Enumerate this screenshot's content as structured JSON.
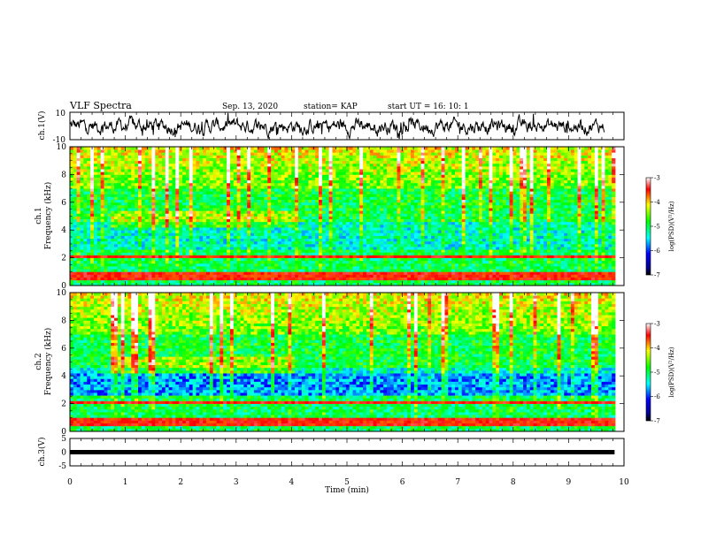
{
  "header": {
    "title": "VLF Spectra",
    "date": "Sep. 13, 2020",
    "station": "station= KAP",
    "start_ut": "start  UT =   16: 10: 1"
  },
  "chart_data": [
    {
      "type": "line",
      "panel": "ch1-waveform",
      "ylabel": "ch.1(V)",
      "ylim": [
        -10,
        10
      ],
      "yticks": [
        "10",
        "-10"
      ],
      "xlim": [
        0,
        10
      ]
    },
    {
      "type": "heatmap",
      "panel": "ch1-spectrogram",
      "ylabel_top": "ch.1",
      "ylabel": "Frequency (kHz)",
      "ylim": [
        0,
        10
      ],
      "yticks": [
        "0",
        "2",
        "4",
        "6",
        "8",
        "10"
      ],
      "xlim": [
        0,
        10
      ],
      "colorbar": {
        "label": "log(PSD)(V²/Hz)",
        "range": [
          -7,
          -3
        ],
        "ticks": [
          "-3",
          "-4",
          "-5",
          "-6",
          "-7"
        ]
      }
    },
    {
      "type": "heatmap",
      "panel": "ch2-spectrogram",
      "ylabel_top": "ch.2",
      "ylabel": "Frequency (kHz)",
      "ylim": [
        0,
        10
      ],
      "yticks": [
        "0",
        "2",
        "4",
        "6",
        "8",
        "10"
      ],
      "xlim": [
        0,
        10
      ],
      "colorbar": {
        "label": "log(PSD)(V²/Hz)",
        "range": [
          -7,
          -3
        ],
        "ticks": [
          "-3",
          "-4",
          "-5",
          "-6",
          "-7"
        ]
      }
    },
    {
      "type": "line",
      "panel": "ch3-waveform",
      "ylabel": "ch.3(V)",
      "ylim": [
        -5,
        5
      ],
      "yticks": [
        "5",
        "0",
        "-5"
      ],
      "x": [
        0,
        9.83
      ],
      "y": [
        0,
        0
      ],
      "xlabel": "Time (min)",
      "xlim": [
        0,
        10
      ],
      "xticks": [
        "0",
        "1",
        "2",
        "3",
        "4",
        "5",
        "6",
        "7",
        "8",
        "9",
        "10"
      ]
    }
  ],
  "colors": {
    "axis": "#000000",
    "waveform": "#000000",
    "colormap": [
      "#000080",
      "#0000ff",
      "#00ffff",
      "#00ff00",
      "#ffff00",
      "#ff0000",
      "#ffffff"
    ]
  }
}
